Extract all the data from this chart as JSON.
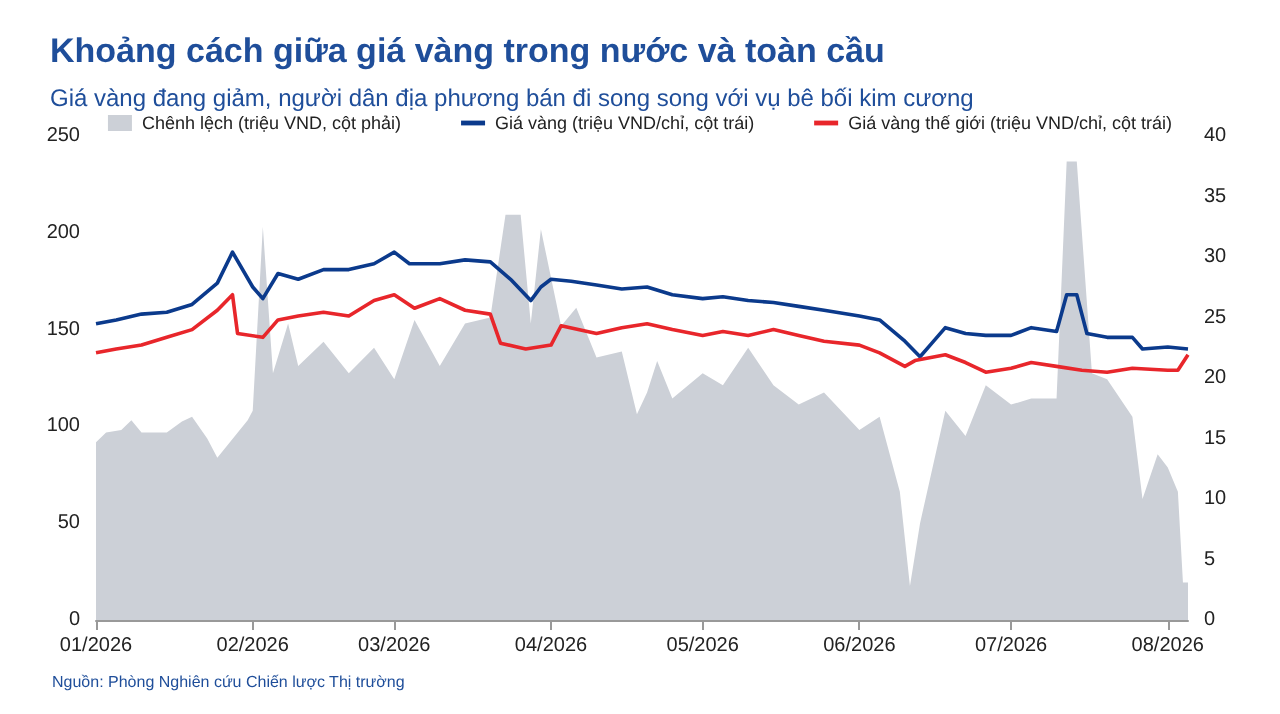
{
  "chart_data": {
    "type": "line",
    "title": "Khoảng cách giữa giá vàng trong nước và toàn cầu",
    "subtitle": "Giá vàng đang giảm, người dân địa phương bán đi song song với vụ bê bối kim cương",
    "annotations": [
      "Nguồn: Phòng Nghiên cứu Chiến lược Thị trường"
    ],
    "xlim": [
      "2026-01-01",
      "2026-08-05"
    ],
    "xticks": [
      {
        "value": "2026-01-01",
        "label": "01/2026"
      },
      {
        "value": "2026-02-01",
        "label": "02/2026"
      },
      {
        "value": "2026-03-01",
        "label": "03/2026"
      },
      {
        "value": "2026-04-01",
        "label": "04/2026"
      },
      {
        "value": "2026-05-01",
        "label": "05/2026"
      },
      {
        "value": "2026-06-01",
        "label": "06/2026"
      },
      {
        "value": "2026-07-01",
        "label": "07/2026"
      },
      {
        "value": "2026-08-01",
        "label": "08/2026"
      }
    ],
    "ylim": [
      0,
      250
    ],
    "yticks": [
      0,
      50,
      100,
      150,
      200,
      250
    ],
    "y2lim": [
      0,
      40
    ],
    "y2ticks": [
      0,
      5,
      10,
      15,
      20,
      25,
      30,
      35,
      40
    ],
    "grid": false,
    "legend": "top",
    "marker": "none",
    "line_style": "solid",
    "series": [
      {
        "name": "Chênh lệch (triệu VND, cột phải)",
        "type": "area",
        "axis": "y2",
        "color": "#ccd0d7",
        "x": [
          "2026-01-01",
          "2026-01-03",
          "2026-01-06",
          "2026-01-08",
          "2026-01-10",
          "2026-01-15",
          "2026-01-18",
          "2026-01-20",
          "2026-01-23",
          "2026-01-25",
          "2026-01-31",
          "2026-02-01",
          "2026-02-03",
          "2026-02-05",
          "2026-02-08",
          "2026-02-10",
          "2026-02-15",
          "2026-02-20",
          "2026-02-25",
          "2026-03-01",
          "2026-03-05",
          "2026-03-10",
          "2026-03-15",
          "2026-03-20",
          "2026-03-23",
          "2026-03-26",
          "2026-03-28",
          "2026-03-30",
          "2026-04-03",
          "2026-04-06",
          "2026-04-10",
          "2026-04-15",
          "2026-04-18",
          "2026-04-20",
          "2026-04-22",
          "2026-04-25",
          "2026-05-01",
          "2026-05-05",
          "2026-05-10",
          "2026-05-15",
          "2026-05-20",
          "2026-05-25",
          "2026-06-01",
          "2026-06-05",
          "2026-06-09",
          "2026-06-11",
          "2026-06-13",
          "2026-06-18",
          "2026-06-22",
          "2026-06-26",
          "2026-07-01",
          "2026-07-05",
          "2026-07-10",
          "2026-07-12",
          "2026-07-14",
          "2026-07-17",
          "2026-07-20",
          "2026-07-25",
          "2026-07-27",
          "2026-07-30",
          "2026-08-01",
          "2026-08-03",
          "2026-08-04",
          "2026-08-05"
        ],
        "values": [
          14.7,
          15.5,
          15.7,
          16.5,
          15.5,
          15.5,
          16.4,
          16.8,
          15,
          13.4,
          16.5,
          17.3,
          32.5,
          20.4,
          24.5,
          21,
          23,
          20.4,
          22.5,
          19.9,
          24.8,
          21,
          24.5,
          25,
          33.5,
          33.5,
          24.5,
          32.3,
          24.3,
          25.8,
          21.7,
          22.2,
          17,
          18.8,
          21.4,
          18.3,
          20.4,
          19.4,
          22.5,
          19.4,
          17.8,
          18.8,
          15.7,
          16.8,
          10.6,
          2.8,
          8,
          17.3,
          15.2,
          19.4,
          17.8,
          18.3,
          18.3,
          37.9,
          37.9,
          20.4,
          19.9,
          16.8,
          10,
          13.7,
          12.6,
          10.6,
          3.1,
          3.1
        ]
      },
      {
        "name": "Giá vàng (triệu VND/chỉ, cột trái)",
        "color": "#0b3a8c",
        "x": [
          "2026-01-01",
          "2026-01-05",
          "2026-01-10",
          "2026-01-15",
          "2026-01-20",
          "2026-01-25",
          "2026-01-28",
          "2026-02-01",
          "2026-02-03",
          "2026-02-06",
          "2026-02-10",
          "2026-02-15",
          "2026-02-20",
          "2026-02-25",
          "2026-03-01",
          "2026-03-04",
          "2026-03-10",
          "2026-03-15",
          "2026-03-20",
          "2026-03-24",
          "2026-03-28",
          "2026-03-30",
          "2026-04-01",
          "2026-04-05",
          "2026-04-10",
          "2026-04-15",
          "2026-04-20",
          "2026-04-25",
          "2026-05-01",
          "2026-05-05",
          "2026-05-10",
          "2026-05-15",
          "2026-05-20",
          "2026-05-25",
          "2026-06-01",
          "2026-06-05",
          "2026-06-10",
          "2026-06-13",
          "2026-06-15",
          "2026-06-18",
          "2026-06-22",
          "2026-06-26",
          "2026-07-01",
          "2026-07-05",
          "2026-07-10",
          "2026-07-12",
          "2026-07-14",
          "2026-07-16",
          "2026-07-20",
          "2026-07-25",
          "2026-07-27",
          "2026-08-01",
          "2026-08-05"
        ],
        "values": [
          153,
          155,
          158,
          159,
          163,
          174,
          190,
          172,
          166,
          179,
          176,
          181,
          181,
          184,
          190,
          184,
          184,
          186,
          185,
          176,
          165,
          172,
          176,
          175,
          173,
          171,
          172,
          168,
          166,
          167,
          165,
          164,
          162,
          160,
          157,
          155,
          144,
          136,
          142,
          151,
          148,
          147,
          147,
          151,
          149,
          168,
          168,
          148,
          146,
          146,
          140,
          141,
          140
        ]
      },
      {
        "name": "Giá vàng thế giới (triệu VND/chỉ, cột trái)",
        "color": "#e8262b",
        "x": [
          "2026-01-01",
          "2026-01-05",
          "2026-01-10",
          "2026-01-15",
          "2026-01-20",
          "2026-01-25",
          "2026-01-28",
          "2026-01-29",
          "2026-02-03",
          "2026-02-06",
          "2026-02-10",
          "2026-02-15",
          "2026-02-20",
          "2026-02-25",
          "2026-03-01",
          "2026-03-05",
          "2026-03-10",
          "2026-03-15",
          "2026-03-20",
          "2026-03-22",
          "2026-03-27",
          "2026-04-01",
          "2026-04-03",
          "2026-04-10",
          "2026-04-15",
          "2026-04-20",
          "2026-04-25",
          "2026-05-01",
          "2026-05-05",
          "2026-05-10",
          "2026-05-15",
          "2026-05-20",
          "2026-05-25",
          "2026-06-01",
          "2026-06-05",
          "2026-06-10",
          "2026-06-12",
          "2026-06-18",
          "2026-06-22",
          "2026-06-26",
          "2026-07-01",
          "2026-07-05",
          "2026-07-10",
          "2026-07-15",
          "2026-07-20",
          "2026-07-25",
          "2026-08-01",
          "2026-08-03",
          "2026-08-05"
        ],
        "values": [
          138,
          140,
          142,
          146,
          150,
          160,
          168,
          148,
          146,
          155,
          157,
          159,
          157,
          165,
          168,
          161,
          166,
          160,
          158,
          143,
          140,
          142,
          152,
          148,
          151,
          153,
          150,
          147,
          149,
          147,
          150,
          147,
          144,
          142,
          138,
          131,
          134,
          137,
          133,
          128,
          130,
          133,
          131,
          129,
          128,
          130,
          129,
          129,
          137
        ]
      }
    ]
  }
}
